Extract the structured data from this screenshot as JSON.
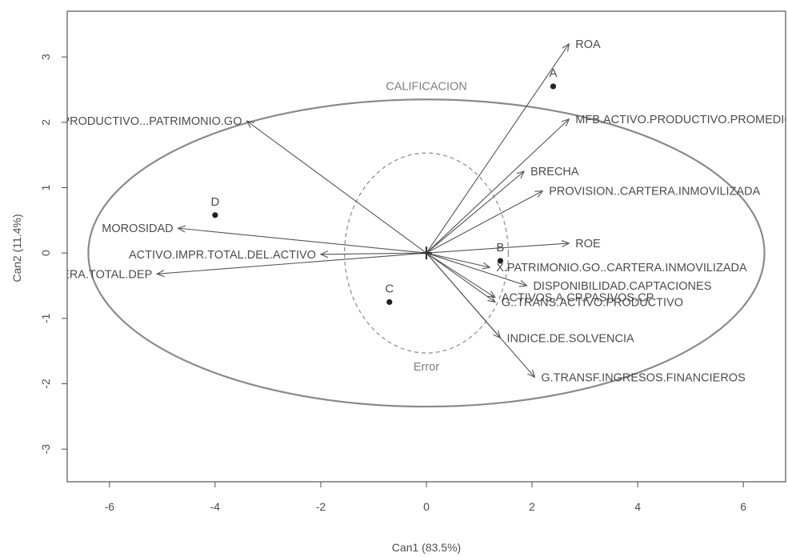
{
  "chart_data": {
    "type": "scatter",
    "title": "",
    "xlabel": "Can1 (83.5%)",
    "ylabel": "Can2 (11.4%)",
    "xlim": [
      -6.8,
      6.8
    ],
    "ylim": [
      -3.5,
      3.7
    ],
    "x_ticks": [
      -6,
      -4,
      -2,
      0,
      2,
      4,
      6
    ],
    "y_ticks": [
      -3,
      -2,
      -1,
      0,
      1,
      2,
      3
    ],
    "grid": false,
    "points": [
      {
        "label": "A",
        "x": 2.4,
        "y": 2.55
      },
      {
        "label": "B",
        "x": 1.4,
        "y": -0.12
      },
      {
        "label": "C",
        "x": -0.7,
        "y": -0.75
      },
      {
        "label": "D",
        "x": -4.0,
        "y": 0.58
      }
    ],
    "vectors": [
      {
        "label": "ROA",
        "x": 2.7,
        "y": 3.2
      },
      {
        "label": "MFB.ACTIVO.PRODUCTIVO.PROMEDIO",
        "x": 2.7,
        "y": 2.05
      },
      {
        "label": "BRECHA",
        "x": 1.85,
        "y": 1.25
      },
      {
        "label": "PROVISION..CARTERA.INMOVILIZADA",
        "x": 2.2,
        "y": 0.95
      },
      {
        "label": "ROE",
        "x": 2.7,
        "y": 0.15
      },
      {
        "label": "X.PATRIMONIO.GO..CARTERA.INMOVILIZADA",
        "x": 1.2,
        "y": -0.22
      },
      {
        "label": "DISPONIBILIDAD.CAPTACIONES",
        "x": 1.9,
        "y": -0.5
      },
      {
        "label": "ACTIVOS.A.CP.PASIVOS.CP",
        "x": 1.3,
        "y": -0.68
      },
      {
        "label": "G..TRANS.ACTIVO.PRODUCTIVO",
        "x": 1.3,
        "y": -0.75
      },
      {
        "label": "INDICE.DE.SOLVENCIA",
        "x": 1.4,
        "y": -1.3
      },
      {
        "label": "G.TRANSF.INGRESOS.FINANCIEROS",
        "x": 2.05,
        "y": -1.9
      },
      {
        "label": "ACTIVO.PRODUCTIVO...PATRIMONIO.GO",
        "x": -3.4,
        "y": 2.02
      },
      {
        "label": "MOROSIDAD",
        "x": -4.7,
        "y": 0.38
      },
      {
        "label": "ACTIVO.IMPR.TOTAL.DEL.ACTIVO",
        "x": -2.0,
        "y": -0.02
      },
      {
        "label": "MOROSIDAD.CARTERA.TOTAL.DEP",
        "x": -5.1,
        "y": -0.32
      }
    ],
    "ellipses": [
      {
        "label": "CALIFICACION",
        "center": [
          0,
          0
        ],
        "radii": [
          6.4,
          2.35
        ],
        "style": "solid",
        "color": "#8a8a8a"
      },
      {
        "label": "Error",
        "center": [
          0,
          0
        ],
        "radii": [
          1.55,
          1.53
        ],
        "style": "dashed",
        "color": "#8a8a8a"
      }
    ],
    "colors": {
      "ink": "#4d4d4d",
      "arrows": "#555555",
      "ellipse": "#8a8a8a"
    }
  }
}
